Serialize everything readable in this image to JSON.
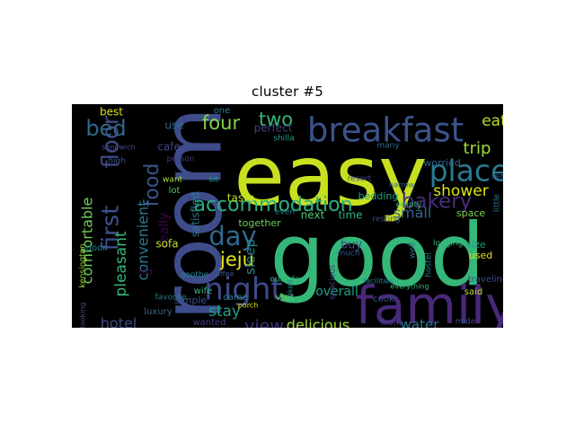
{
  "title": "cluster  #5",
  "chart_data": {
    "type": "wordcloud",
    "colormap": "viridis",
    "background": "#000000",
    "title": "cluster  #5",
    "words": [
      {
        "text": "room",
        "color": "#3e4c8a"
      },
      {
        "text": "good",
        "color": "#35b779"
      },
      {
        "text": "easy",
        "color": "#c8e020"
      },
      {
        "text": "family",
        "color": "#482878"
      },
      {
        "text": "breakfast",
        "color": "#3b528b"
      },
      {
        "text": "place",
        "color": "#2a788e"
      },
      {
        "text": "night",
        "color": "#3e4a89"
      },
      {
        "text": "first",
        "color": "#3b528b"
      },
      {
        "text": "floor",
        "color": "#3e4a89"
      },
      {
        "text": "accommodation",
        "color": "#2ab07f"
      },
      {
        "text": "bed",
        "color": "#31688e"
      },
      {
        "text": "food",
        "color": "#3b528b"
      },
      {
        "text": "day",
        "color": "#31688e"
      },
      {
        "text": "four",
        "color": "#86d549"
      },
      {
        "text": "two",
        "color": "#35b779"
      },
      {
        "text": "bakery",
        "color": "#472c7a"
      },
      {
        "text": "shower",
        "color": "#dde318"
      },
      {
        "text": "trip",
        "color": "#a0da39"
      },
      {
        "text": "eat",
        "color": "#b5de2b"
      },
      {
        "text": "jeju",
        "color": "#e5e419"
      },
      {
        "text": "view",
        "color": "#46327e"
      },
      {
        "text": "small",
        "color": "#31688e"
      },
      {
        "text": "comfortable",
        "color": "#6ece58"
      },
      {
        "text": "pleasant",
        "color": "#35b779"
      },
      {
        "text": "convenient",
        "color": "#2a788e"
      },
      {
        "text": "sleep",
        "color": "#26828e"
      },
      {
        "text": "stay",
        "color": "#1f9e89"
      },
      {
        "text": "hotel",
        "color": "#3e4a89"
      },
      {
        "text": "delicious",
        "color": "#9fda3a"
      },
      {
        "text": "water",
        "color": "#2a788e"
      },
      {
        "text": "convenience",
        "color": "#39568c"
      },
      {
        "text": "store",
        "color": "#2c728e"
      },
      {
        "text": "next",
        "color": "#52c569"
      },
      {
        "text": "time",
        "color": "#2ab07f"
      },
      {
        "text": "buy",
        "color": "#3e4a89"
      },
      {
        "text": "really",
        "color": "#440154"
      },
      {
        "text": "overall",
        "color": "#1fa188"
      },
      {
        "text": "satisfied",
        "color": "#2a788e"
      },
      {
        "text": "sofa",
        "color": "#c0df25"
      },
      {
        "text": "best",
        "color": "#dde318"
      },
      {
        "text": "use",
        "color": "#31688e"
      },
      {
        "text": "perfect",
        "color": "#433e85"
      },
      {
        "text": "cafe",
        "color": "#404688"
      },
      {
        "text": "taste",
        "color": "#b8de29"
      },
      {
        "text": "together",
        "color": "#6ece58"
      },
      {
        "text": "bedding",
        "color": "#1fa188"
      },
      {
        "text": "worried",
        "color": "#31688e"
      },
      {
        "text": "space",
        "color": "#7ad151"
      },
      {
        "text": "size",
        "color": "#1f9e89"
      },
      {
        "text": "used",
        "color": "#dde318"
      },
      {
        "text": "said",
        "color": "#c2df23"
      },
      {
        "text": "traveling",
        "color": "#3e4a89"
      },
      {
        "text": "simple",
        "color": "#3b528b"
      },
      {
        "text": "wanted",
        "color": "#433e85"
      },
      {
        "text": "came",
        "color": "#26828e"
      },
      {
        "text": "cook",
        "color": "#3b528b"
      },
      {
        "text": "front",
        "color": "#433e85"
      },
      {
        "text": "mide",
        "color": "#3e4a89"
      },
      {
        "text": "door",
        "color": "#26828e"
      },
      {
        "text": "old",
        "color": "#440154"
      },
      {
        "text": "wife",
        "color": "#35b779"
      },
      {
        "text": "luxury",
        "color": "#31688e"
      },
      {
        "text": "favorite",
        "color": "#2a788e"
      },
      {
        "text": "kensington",
        "color": "#9fda3a"
      },
      {
        "text": "sandwich",
        "color": "#3e4a89"
      },
      {
        "text": "high",
        "color": "#3b528b"
      },
      {
        "text": "one",
        "color": "#26828e"
      },
      {
        "text": "visit",
        "color": "#6ece58"
      },
      {
        "text": "lot",
        "color": "#5ec962"
      },
      {
        "text": "want",
        "color": "#a5db36"
      },
      {
        "text": "person",
        "color": "#433e85"
      },
      {
        "text": "shilla",
        "color": "#1f9e89"
      },
      {
        "text": "resort",
        "color": "#3e4a89"
      },
      {
        "text": "even",
        "color": "#26828e"
      },
      {
        "text": "resting",
        "color": "#3e4a89"
      },
      {
        "text": "empty",
        "color": "#35b779"
      },
      {
        "text": "sea",
        "color": "#3b528b"
      },
      {
        "text": "little",
        "color": "#2a788e"
      },
      {
        "text": "many",
        "color": "#31688e"
      },
      {
        "text": "hostel",
        "color": "#26828e"
      },
      {
        "text": "lodgings",
        "color": "#35b779"
      },
      {
        "text": "porch",
        "color": "#dde318"
      },
      {
        "text": "much",
        "color": "#3b528b"
      },
      {
        "text": "well",
        "color": "#31688e"
      },
      {
        "text": "soothe",
        "color": "#26828e"
      },
      {
        "text": "coffee",
        "color": "#3b528b"
      },
      {
        "text": "outside",
        "color": "#35b779"
      },
      {
        "text": "spacious",
        "color": "#3e4a89"
      },
      {
        "text": "liked",
        "color": "#26828e"
      },
      {
        "text": "everything",
        "color": "#35b779"
      },
      {
        "text": "facilities",
        "color": "#26828e"
      },
      {
        "text": "looking",
        "color": "#3e4a89"
      },
      {
        "text": "narrow",
        "color": "#31688e"
      },
      {
        "text": "bit",
        "color": "#1f9e89"
      }
    ]
  }
}
